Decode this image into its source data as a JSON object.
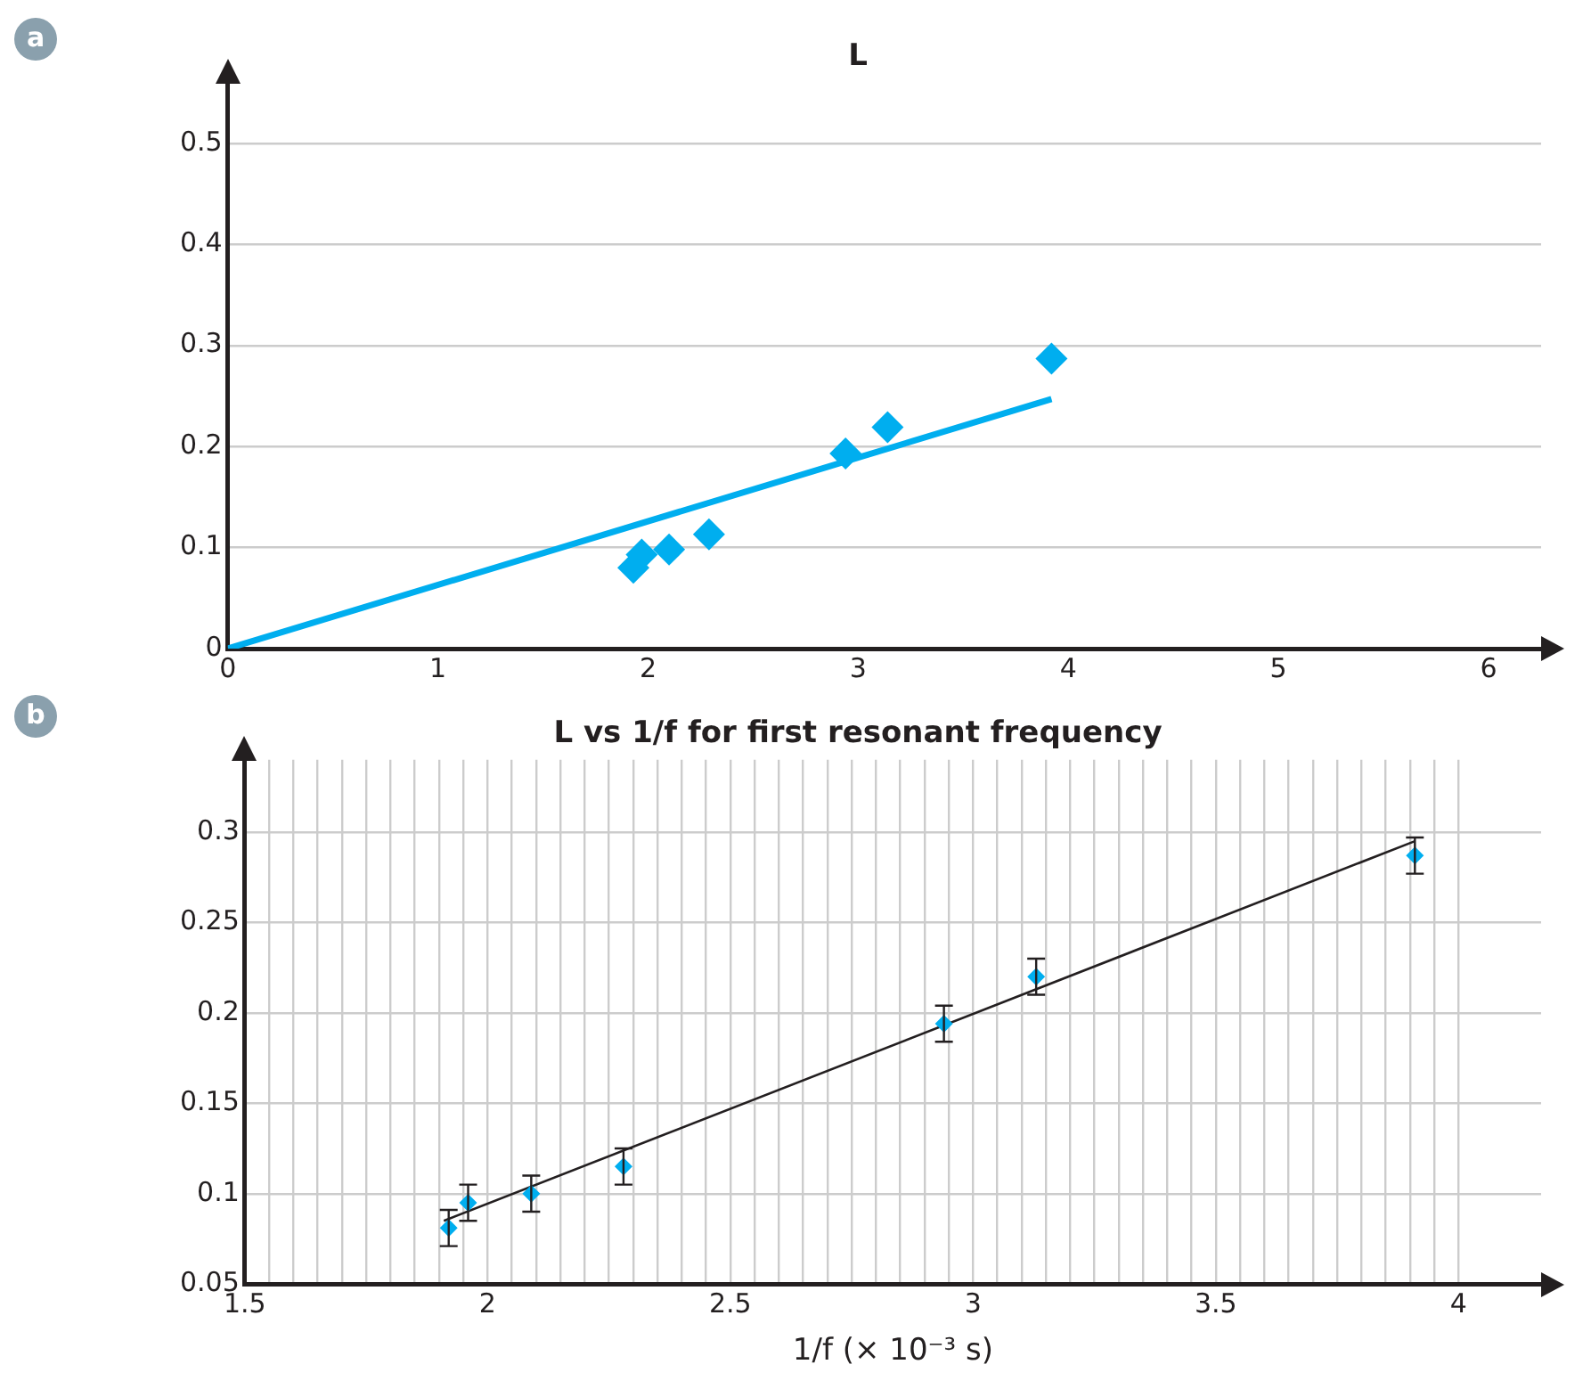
{
  "chart_data": [
    {
      "type": "scatter",
      "title": "L",
      "annotations": [
        "a"
      ],
      "xlim": [
        0,
        6.25
      ],
      "ylim": [
        0,
        0.56
      ],
      "xticks": [
        0,
        1,
        2,
        3,
        4,
        5,
        6
      ],
      "yticks": [
        0,
        0.1,
        0.2,
        0.3,
        0.4,
        0.5
      ],
      "grid": "y",
      "legend": false,
      "series": [
        {
          "marker": "diamond",
          "color": "#00aeef",
          "x": [
            1.93,
            1.97,
            2.1,
            2.29,
            2.94,
            3.14,
            3.92
          ],
          "values": [
            0.08,
            0.093,
            0.098,
            0.113,
            0.193,
            0.219,
            0.287
          ]
        },
        {
          "type": "line",
          "color": "#00aeef",
          "x": [
            0,
            3.92
          ],
          "values": [
            0,
            0.247
          ]
        }
      ]
    },
    {
      "type": "scatter",
      "title": "L vs 1/f for first resonant frequency",
      "xlabel": "1/f (× 10⁻³ s)",
      "annotations": [
        "b"
      ],
      "xlim": [
        1.5,
        4.17
      ],
      "ylim": [
        0.05,
        0.34
      ],
      "xticks": [
        1.5,
        {
          "value": 1.55,
          "label": null
        },
        {
          "value": 1.6,
          "label": null
        },
        {
          "value": 1.65,
          "label": null
        },
        {
          "value": 1.7,
          "label": null
        },
        {
          "value": 1.75,
          "label": null
        },
        {
          "value": 1.8,
          "label": null
        },
        {
          "value": 1.85,
          "label": null
        },
        {
          "value": 1.9,
          "label": null
        },
        {
          "value": 1.95,
          "label": null
        },
        2,
        {
          "value": 2.05,
          "label": null
        },
        {
          "value": 2.1,
          "label": null
        },
        {
          "value": 2.15,
          "label": null
        },
        {
          "value": 2.2,
          "label": null
        },
        {
          "value": 2.25,
          "label": null
        },
        {
          "value": 2.3,
          "label": null
        },
        {
          "value": 2.35,
          "label": null
        },
        {
          "value": 2.4,
          "label": null
        },
        {
          "value": 2.45,
          "label": null
        },
        2.5,
        {
          "value": 2.55,
          "label": null
        },
        {
          "value": 2.6,
          "label": null
        },
        {
          "value": 2.65,
          "label": null
        },
        {
          "value": 2.7,
          "label": null
        },
        {
          "value": 2.75,
          "label": null
        },
        {
          "value": 2.8,
          "label": null
        },
        {
          "value": 2.85,
          "label": null
        },
        {
          "value": 2.9,
          "label": null
        },
        {
          "value": 2.95,
          "label": null
        },
        3,
        {
          "value": 3.05,
          "label": null
        },
        {
          "value": 3.1,
          "label": null
        },
        {
          "value": 3.15,
          "label": null
        },
        {
          "value": 3.2,
          "label": null
        },
        {
          "value": 3.25,
          "label": null
        },
        {
          "value": 3.3,
          "label": null
        },
        {
          "value": 3.35,
          "label": null
        },
        {
          "value": 3.4,
          "label": null
        },
        {
          "value": 3.45,
          "label": null
        },
        3.5,
        {
          "value": 3.55,
          "label": null
        },
        {
          "value": 3.6,
          "label": null
        },
        {
          "value": 3.65,
          "label": null
        },
        {
          "value": 3.7,
          "label": null
        },
        {
          "value": 3.75,
          "label": null
        },
        {
          "value": 3.8,
          "label": null
        },
        {
          "value": 3.85,
          "label": null
        },
        {
          "value": 3.9,
          "label": null
        },
        {
          "value": 3.95,
          "label": null
        },
        4
      ],
      "yticks": [
        0.05,
        0.1,
        0.15,
        0.2,
        0.25,
        0.3
      ],
      "grid": true,
      "legend": false,
      "series": [
        {
          "marker": "diamond",
          "color": "#00aeef",
          "x": [
            1.92,
            1.96,
            2.09,
            2.28,
            2.94,
            3.13,
            3.91
          ],
          "values": [
            0.081,
            0.095,
            0.1,
            0.115,
            0.194,
            0.22,
            0.287
          ],
          "errors": [
            0.01,
            0.01,
            0.01,
            0.01,
            0.01,
            0.01,
            0.01
          ]
        },
        {
          "type": "line",
          "color": "#231f20",
          "x": [
            1.91,
            3.91
          ],
          "values": [
            0.085,
            0.295
          ]
        }
      ]
    }
  ]
}
